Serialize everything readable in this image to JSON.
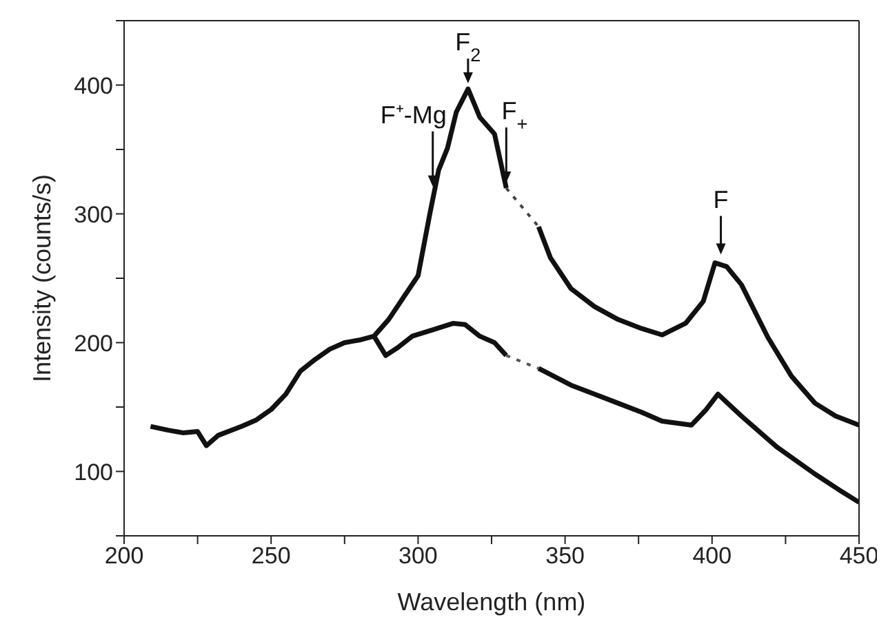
{
  "chart_data": {
    "type": "line",
    "xlabel": "Wavelength (nm)",
    "ylabel": "Intensity (counts/s)",
    "xlim": [
      200,
      450
    ],
    "ylim": [
      50,
      450
    ],
    "xticks": [
      200,
      {
        "value": 225,
        "label": null
      },
      250,
      {
        "value": 275,
        "label": null
      },
      300,
      {
        "value": 325,
        "label": null
      },
      350,
      {
        "value": 375,
        "label": null
      },
      400,
      {
        "value": 425,
        "label": null
      },
      450
    ],
    "yticks": [
      {
        "value": 50,
        "label": null
      },
      100,
      {
        "value": 150,
        "label": null
      },
      200,
      {
        "value": 250,
        "label": null
      },
      300,
      {
        "value": 350,
        "label": null
      },
      400,
      {
        "value": 450,
        "label": null
      }
    ],
    "line_style": "solid",
    "marker": "none",
    "series": [
      {
        "color": "#111111",
        "x": [
          209,
          215,
          220,
          225,
          228,
          232,
          240,
          245,
          250,
          255,
          260,
          265,
          270,
          275,
          280,
          285,
          290,
          295,
          300,
          304,
          307,
          310,
          313,
          317,
          321,
          326,
          330,
          335,
          341,
          345,
          352,
          360,
          368,
          376,
          383,
          391,
          397,
          401,
          405,
          410,
          419,
          427,
          435,
          442,
          450
        ],
        "values": [
          135,
          132,
          130,
          131,
          120,
          128,
          135,
          140,
          148,
          160,
          178,
          187,
          195,
          200,
          202,
          205,
          218,
          235,
          252,
          300,
          334,
          351,
          379,
          397,
          375,
          362,
          320,
          null,
          290,
          266,
          242,
          228,
          218,
          211,
          206,
          215,
          232,
          262,
          259,
          245,
          204,
          174,
          153,
          143,
          136
        ]
      },
      {
        "color": "#111111",
        "x": [
          285,
          289,
          293,
          298,
          305,
          312,
          316,
          321,
          326,
          330,
          335,
          341,
          352,
          360,
          368,
          376,
          383,
          393,
          398,
          402,
          410,
          422,
          435,
          443,
          450
        ],
        "values": [
          205,
          190,
          196,
          205,
          210,
          215,
          214,
          205,
          200,
          190,
          null,
          180,
          167,
          160,
          153,
          146,
          139,
          136,
          148,
          160,
          143,
          119,
          98,
          86,
          76
        ]
      },
      {
        "type": "line",
        "line_style": "dotted",
        "color": "#444444",
        "x": [
          330,
          341
        ],
        "values": [
          320,
          290
        ]
      },
      {
        "type": "line",
        "line_style": "dotted",
        "color": "#555555",
        "x": [
          330,
          341
        ],
        "values": [
          190,
          180
        ]
      }
    ],
    "annotations": [
      {
        "text": "F⁺-Mg",
        "x": 305,
        "y": 317
      },
      {
        "text": "F$_{2}$",
        "x": 317,
        "y": 397
      },
      {
        "text": "F$_{+}$",
        "x": 330,
        "y": 320
      },
      {
        "text": "F",
        "x": 403,
        "y": 262
      }
    ]
  }
}
